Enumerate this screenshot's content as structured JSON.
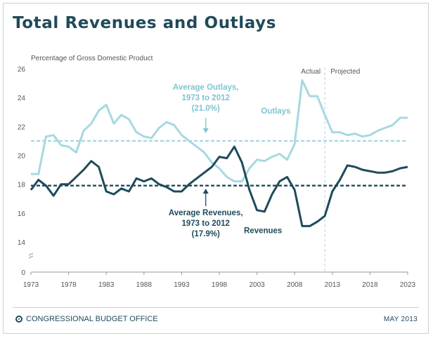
{
  "header": {
    "title": "Total Revenues and Outlays"
  },
  "footer": {
    "agency": "CONGRESSIONAL BUDGET OFFICE",
    "date": "MAY 2013"
  },
  "colors": {
    "outlays": "#a7d8e2",
    "revenues": "#1e4b5b",
    "axis": "#999999",
    "title": "#1f4a5a"
  },
  "chart_data": {
    "type": "line",
    "ylabel": "Percentage of Gross Domestic Product",
    "xlim": [
      1973,
      2023
    ],
    "ylim": [
      0,
      26
    ],
    "yticks": [
      0,
      14,
      16,
      18,
      20,
      22,
      24,
      26
    ],
    "xticks": [
      1973,
      1978,
      1983,
      1988,
      1993,
      1998,
      2003,
      2008,
      2013,
      2018,
      2023
    ],
    "axis_break_between": [
      0,
      14
    ],
    "grid": false,
    "split_year": 2012,
    "split_labels": {
      "actual": "Actual",
      "projected": "Projected"
    },
    "series": [
      {
        "name": "Outlays",
        "label_year": 2005.5,
        "label_value": 22.9,
        "x": [
          1973,
          1974,
          1975,
          1976,
          1977,
          1978,
          1979,
          1980,
          1981,
          1982,
          1983,
          1984,
          1985,
          1986,
          1987,
          1988,
          1989,
          1990,
          1991,
          1992,
          1993,
          1994,
          1995,
          1996,
          1997,
          1998,
          1999,
          2000,
          2001,
          2002,
          2003,
          2004,
          2005,
          2006,
          2007,
          2008,
          2009,
          2010,
          2011,
          2012,
          2013,
          2014,
          2015,
          2016,
          2017,
          2018,
          2019,
          2020,
          2021,
          2022,
          2023
        ],
        "y": [
          18.7,
          18.7,
          21.3,
          21.4,
          20.7,
          20.6,
          20.2,
          21.7,
          22.2,
          23.1,
          23.5,
          22.2,
          22.8,
          22.5,
          21.6,
          21.3,
          21.2,
          21.9,
          22.3,
          22.1,
          21.4,
          21.0,
          20.6,
          20.2,
          19.5,
          19.1,
          18.5,
          18.2,
          18.2,
          19.1,
          19.7,
          19.6,
          19.9,
          20.1,
          19.7,
          20.8,
          25.2,
          24.1,
          24.1,
          22.8,
          21.6,
          21.6,
          21.4,
          21.5,
          21.3,
          21.4,
          21.7,
          21.9,
          22.1,
          22.6,
          22.6
        ]
      },
      {
        "name": "Revenues",
        "label_year": 2003.8,
        "label_value": 14.6,
        "x": [
          1973,
          1974,
          1975,
          1976,
          1977,
          1978,
          1979,
          1980,
          1981,
          1982,
          1983,
          1984,
          1985,
          1986,
          1987,
          1988,
          1989,
          1990,
          1991,
          1992,
          1993,
          1994,
          1995,
          1996,
          1997,
          1998,
          1999,
          2000,
          2001,
          2002,
          2003,
          2004,
          2005,
          2006,
          2007,
          2008,
          2009,
          2010,
          2011,
          2012,
          2013,
          2014,
          2015,
          2016,
          2017,
          2018,
          2019,
          2020,
          2021,
          2022,
          2023
        ],
        "y": [
          17.6,
          18.3,
          17.9,
          17.2,
          18.0,
          18.0,
          18.5,
          19.0,
          19.6,
          19.2,
          17.5,
          17.3,
          17.7,
          17.5,
          18.4,
          18.2,
          18.4,
          18.0,
          17.8,
          17.5,
          17.5,
          18.0,
          18.4,
          18.8,
          19.2,
          19.9,
          19.8,
          20.6,
          19.5,
          17.6,
          16.2,
          16.1,
          17.3,
          18.2,
          18.5,
          17.6,
          15.1,
          15.1,
          15.4,
          15.8,
          17.5,
          18.3,
          19.3,
          19.2,
          19.0,
          18.9,
          18.8,
          18.8,
          18.9,
          19.1,
          19.2
        ]
      }
    ],
    "references": [
      {
        "name": "Average Outlays",
        "value": 21.0,
        "label": [
          "Average Outlays,",
          "1973 to 2012",
          "(21.0%)"
        ]
      },
      {
        "name": "Average Revenues",
        "value": 17.9,
        "label": [
          "Average Revenues,",
          "1973 to 2012",
          "(17.9%)"
        ]
      }
    ]
  }
}
